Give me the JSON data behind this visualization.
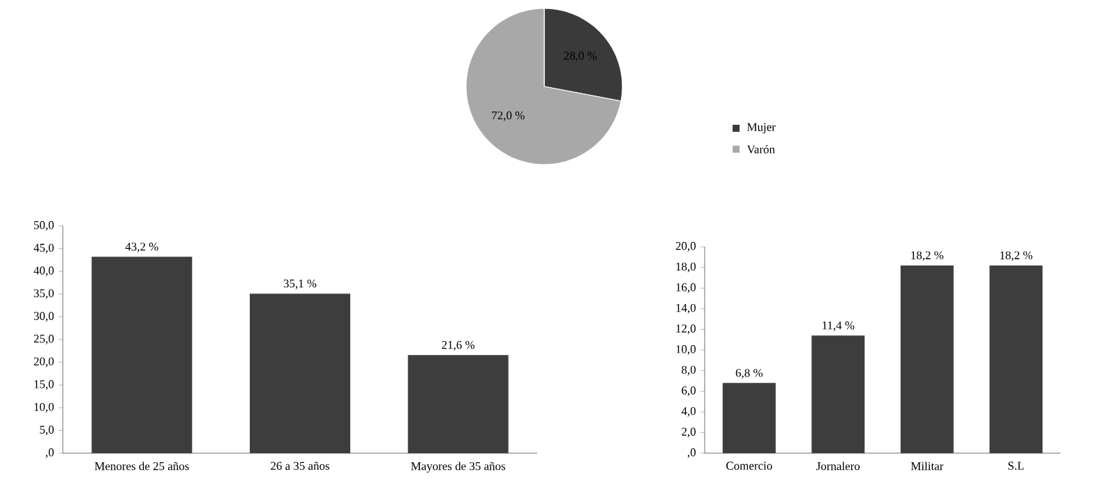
{
  "chart_data": [
    {
      "type": "pie",
      "categories": [
        "Mujer",
        "Varón"
      ],
      "values": [
        28.0,
        72.0
      ],
      "colors": [
        "#3a3a3a",
        "#a8a8a8"
      ],
      "value_labels": [
        "28,0 %",
        "72,0 %"
      ],
      "legend": "right"
    },
    {
      "type": "bar",
      "categories": [
        "Menores de 25 años",
        "26 a 35 años",
        "Mayores de 35 años"
      ],
      "values": [
        43.2,
        35.1,
        21.6
      ],
      "color": "#3d3d3d",
      "value_labels": [
        "43,2 %",
        "35,1 %",
        "21,6 %"
      ],
      "ylim": [
        0,
        50
      ],
      "yticks": [
        {
          "value": 0,
          "label": ",0"
        },
        {
          "value": 5,
          "label": "5,0"
        },
        {
          "value": 10,
          "label": "10,0"
        },
        {
          "value": 15,
          "label": "15,0"
        },
        {
          "value": 20,
          "label": "20,0"
        },
        {
          "value": 25,
          "label": "25,0"
        },
        {
          "value": 30,
          "label": "30,0"
        },
        {
          "value": 35,
          "label": "35,0"
        },
        {
          "value": 40,
          "label": "40,0"
        },
        {
          "value": 45,
          "label": "45,0"
        },
        {
          "value": 50,
          "label": "50,0"
        }
      ]
    },
    {
      "type": "bar",
      "categories": [
        "Comercio",
        "Jornalero",
        "Militar",
        "S.L"
      ],
      "values": [
        6.8,
        11.4,
        18.2,
        18.2
      ],
      "color": "#3d3d3d",
      "value_labels": [
        "6,8 %",
        "11,4 %",
        "18,2 %",
        "18,2 %"
      ],
      "ylim": [
        0,
        20
      ],
      "yticks": [
        {
          "value": 0,
          "label": ",0"
        },
        {
          "value": 2,
          "label": "2,0"
        },
        {
          "value": 4,
          "label": "4,0"
        },
        {
          "value": 6,
          "label": "6,0"
        },
        {
          "value": 8,
          "label": "8,0"
        },
        {
          "value": 10,
          "label": "10,0"
        },
        {
          "value": 12,
          "label": "12,0"
        },
        {
          "value": 14,
          "label": "14,0"
        },
        {
          "value": 16,
          "label": "16,0"
        },
        {
          "value": 18,
          "label": "18,0"
        },
        {
          "value": 20,
          "label": "20,0"
        }
      ]
    }
  ]
}
